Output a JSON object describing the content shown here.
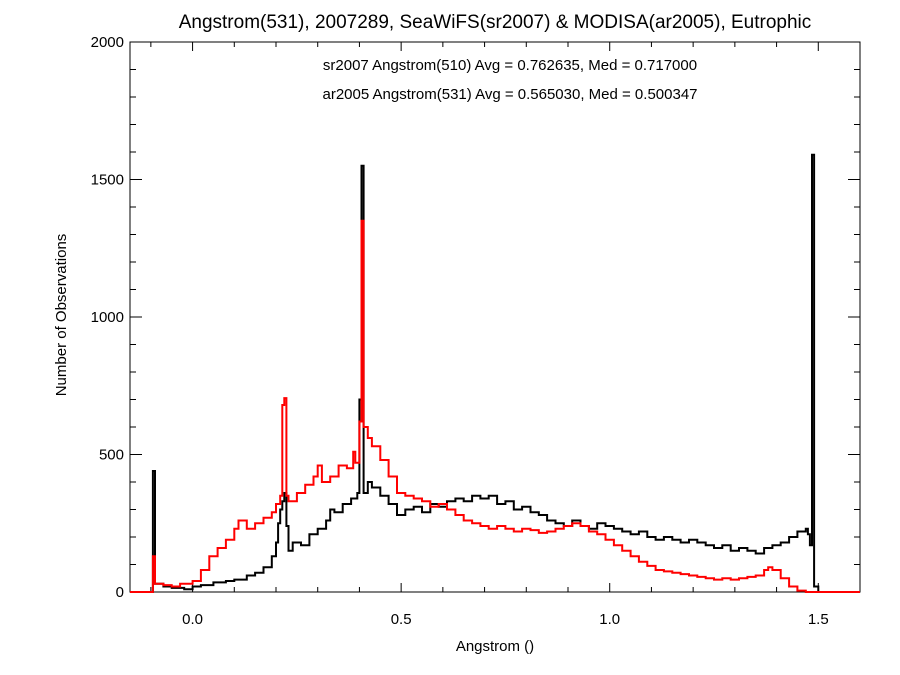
{
  "chart_data": {
    "type": "line",
    "title": "Angstrom(531), 2007289, SeaWiFS(sr2007) & MODISA(ar2005), Eutrophic",
    "xlabel": "Angstrom ()",
    "ylabel": "Number of Observations",
    "xlim": [
      -0.15,
      1.6
    ],
    "ylim": [
      0,
      2000
    ],
    "x_ticks": [
      0.0,
      0.5,
      1.0,
      1.5
    ],
    "x_tick_labels": [
      "0.0",
      "0.5",
      "1.0",
      "1.5"
    ],
    "y_ticks": [
      0,
      500,
      1000,
      1500,
      2000
    ],
    "y_tick_labels": [
      "0",
      "500",
      "1000",
      "1500",
      "2000"
    ],
    "grid": false,
    "legend_position": "top-center",
    "series": [
      {
        "name": "sr2007 Angstrom(510) Avg = 0.762635, Med = 0.717000",
        "color": "#000000",
        "points": [
          [
            -0.15,
            0
          ],
          [
            -0.095,
            0
          ],
          [
            -0.095,
            440
          ],
          [
            -0.09,
            440
          ],
          [
            -0.09,
            30
          ],
          [
            -0.07,
            20
          ],
          [
            -0.05,
            15
          ],
          [
            -0.02,
            10
          ],
          [
            0.0,
            20
          ],
          [
            0.02,
            25
          ],
          [
            0.05,
            35
          ],
          [
            0.08,
            40
          ],
          [
            0.1,
            45
          ],
          [
            0.13,
            60
          ],
          [
            0.15,
            70
          ],
          [
            0.17,
            90
          ],
          [
            0.19,
            130
          ],
          [
            0.2,
            180
          ],
          [
            0.205,
            250
          ],
          [
            0.21,
            300
          ],
          [
            0.215,
            330
          ],
          [
            0.22,
            360
          ],
          [
            0.225,
            240
          ],
          [
            0.23,
            150
          ],
          [
            0.24,
            180
          ],
          [
            0.26,
            170
          ],
          [
            0.28,
            210
          ],
          [
            0.3,
            230
          ],
          [
            0.32,
            260
          ],
          [
            0.33,
            300
          ],
          [
            0.34,
            290
          ],
          [
            0.36,
            320
          ],
          [
            0.38,
            340
          ],
          [
            0.395,
            360
          ],
          [
            0.4,
            700
          ],
          [
            0.405,
            1550
          ],
          [
            0.41,
            360
          ],
          [
            0.42,
            400
          ],
          [
            0.43,
            380
          ],
          [
            0.45,
            350
          ],
          [
            0.47,
            320
          ],
          [
            0.49,
            280
          ],
          [
            0.51,
            300
          ],
          [
            0.53,
            310
          ],
          [
            0.55,
            290
          ],
          [
            0.57,
            320
          ],
          [
            0.59,
            310
          ],
          [
            0.61,
            330
          ],
          [
            0.63,
            340
          ],
          [
            0.65,
            330
          ],
          [
            0.67,
            350
          ],
          [
            0.69,
            340
          ],
          [
            0.71,
            350
          ],
          [
            0.73,
            320
          ],
          [
            0.75,
            330
          ],
          [
            0.77,
            300
          ],
          [
            0.79,
            310
          ],
          [
            0.81,
            290
          ],
          [
            0.83,
            280
          ],
          [
            0.85,
            260
          ],
          [
            0.87,
            250
          ],
          [
            0.89,
            240
          ],
          [
            0.91,
            260
          ],
          [
            0.93,
            240
          ],
          [
            0.95,
            230
          ],
          [
            0.97,
            250
          ],
          [
            0.99,
            240
          ],
          [
            1.01,
            230
          ],
          [
            1.03,
            220
          ],
          [
            1.05,
            210
          ],
          [
            1.07,
            220
          ],
          [
            1.09,
            200
          ],
          [
            1.11,
            190
          ],
          [
            1.13,
            200
          ],
          [
            1.15,
            190
          ],
          [
            1.17,
            180
          ],
          [
            1.19,
            190
          ],
          [
            1.21,
            180
          ],
          [
            1.23,
            170
          ],
          [
            1.25,
            160
          ],
          [
            1.27,
            170
          ],
          [
            1.29,
            150
          ],
          [
            1.31,
            160
          ],
          [
            1.33,
            150
          ],
          [
            1.35,
            140
          ],
          [
            1.37,
            160
          ],
          [
            1.39,
            170
          ],
          [
            1.41,
            180
          ],
          [
            1.43,
            200
          ],
          [
            1.45,
            220
          ],
          [
            1.47,
            230
          ],
          [
            1.475,
            210
          ],
          [
            1.48,
            170
          ],
          [
            1.485,
            1590
          ],
          [
            1.49,
            1590
          ],
          [
            1.49,
            20
          ],
          [
            1.5,
            0
          ],
          [
            1.6,
            0
          ]
        ]
      },
      {
        "name": "ar2005 Angstrom(531) Avg = 0.565030, Med = 0.500347",
        "color": "#ff0000",
        "points": [
          [
            -0.15,
            0
          ],
          [
            -0.095,
            0
          ],
          [
            -0.095,
            130
          ],
          [
            -0.09,
            130
          ],
          [
            -0.09,
            30
          ],
          [
            -0.07,
            25
          ],
          [
            -0.05,
            20
          ],
          [
            -0.03,
            30
          ],
          [
            0.0,
            40
          ],
          [
            0.02,
            80
          ],
          [
            0.04,
            130
          ],
          [
            0.06,
            160
          ],
          [
            0.08,
            190
          ],
          [
            0.1,
            230
          ],
          [
            0.11,
            260
          ],
          [
            0.13,
            230
          ],
          [
            0.15,
            250
          ],
          [
            0.17,
            270
          ],
          [
            0.19,
            290
          ],
          [
            0.2,
            320
          ],
          [
            0.21,
            350
          ],
          [
            0.215,
            680
          ],
          [
            0.22,
            705
          ],
          [
            0.225,
            350
          ],
          [
            0.23,
            330
          ],
          [
            0.25,
            360
          ],
          [
            0.27,
            390
          ],
          [
            0.29,
            420
          ],
          [
            0.3,
            460
          ],
          [
            0.31,
            400
          ],
          [
            0.33,
            420
          ],
          [
            0.35,
            460
          ],
          [
            0.37,
            450
          ],
          [
            0.385,
            510
          ],
          [
            0.39,
            470
          ],
          [
            0.4,
            620
          ],
          [
            0.405,
            1350
          ],
          [
            0.41,
            600
          ],
          [
            0.42,
            560
          ],
          [
            0.43,
            530
          ],
          [
            0.45,
            480
          ],
          [
            0.47,
            420
          ],
          [
            0.49,
            360
          ],
          [
            0.51,
            350
          ],
          [
            0.53,
            340
          ],
          [
            0.55,
            330
          ],
          [
            0.57,
            310
          ],
          [
            0.59,
            320
          ],
          [
            0.61,
            300
          ],
          [
            0.63,
            280
          ],
          [
            0.65,
            260
          ],
          [
            0.67,
            250
          ],
          [
            0.69,
            240
          ],
          [
            0.71,
            230
          ],
          [
            0.73,
            240
          ],
          [
            0.75,
            230
          ],
          [
            0.77,
            220
          ],
          [
            0.79,
            230
          ],
          [
            0.81,
            225
          ],
          [
            0.83,
            215
          ],
          [
            0.85,
            220
          ],
          [
            0.87,
            230
          ],
          [
            0.89,
            240
          ],
          [
            0.91,
            250
          ],
          [
            0.93,
            240
          ],
          [
            0.95,
            220
          ],
          [
            0.97,
            210
          ],
          [
            0.99,
            190
          ],
          [
            1.01,
            170
          ],
          [
            1.03,
            150
          ],
          [
            1.05,
            130
          ],
          [
            1.07,
            110
          ],
          [
            1.09,
            95
          ],
          [
            1.11,
            80
          ],
          [
            1.13,
            75
          ],
          [
            1.15,
            70
          ],
          [
            1.17,
            65
          ],
          [
            1.19,
            60
          ],
          [
            1.21,
            55
          ],
          [
            1.23,
            50
          ],
          [
            1.25,
            45
          ],
          [
            1.27,
            50
          ],
          [
            1.29,
            45
          ],
          [
            1.31,
            50
          ],
          [
            1.33,
            55
          ],
          [
            1.35,
            60
          ],
          [
            1.37,
            80
          ],
          [
            1.38,
            90
          ],
          [
            1.39,
            80
          ],
          [
            1.41,
            50
          ],
          [
            1.43,
            20
          ],
          [
            1.45,
            5
          ],
          [
            1.47,
            0
          ],
          [
            1.6,
            0
          ]
        ]
      }
    ]
  }
}
